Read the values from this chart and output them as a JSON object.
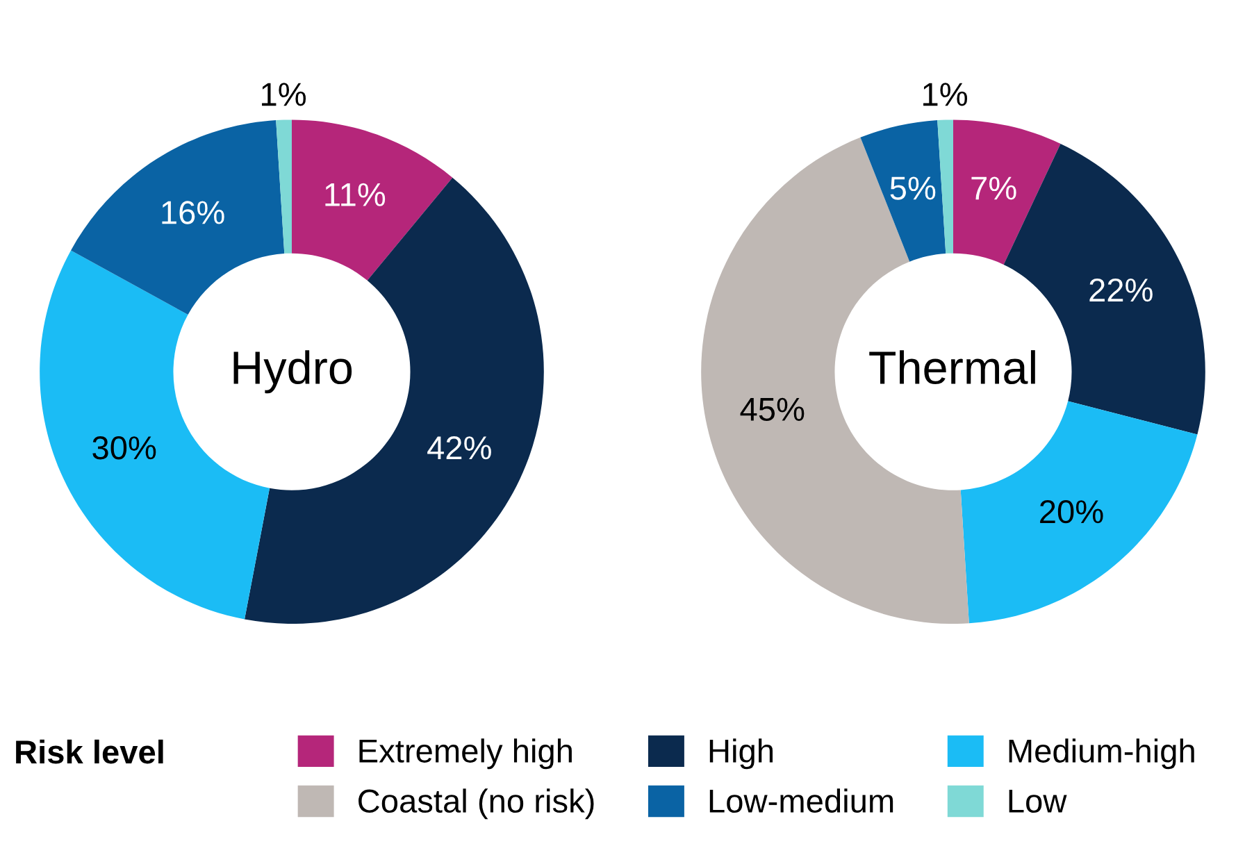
{
  "chart_data": {
    "type": "donut",
    "categories": [
      "Extremely high",
      "High",
      "Medium-high",
      "Coastal (no risk)",
      "Low-medium",
      "Low"
    ],
    "colors": [
      "#b5267a",
      "#0b2a4e",
      "#1bbcf5",
      "#bfb8b4",
      "#0a63a4",
      "#7fd9d6"
    ],
    "series": [
      {
        "name": "Hydro",
        "values": [
          11,
          42,
          30,
          null,
          16,
          1
        ],
        "value_labels": [
          "11%",
          "42%",
          "30%",
          null,
          "16%",
          "1%"
        ]
      },
      {
        "name": "Thermal",
        "values": [
          7,
          22,
          20,
          45,
          5,
          1
        ],
        "value_labels": [
          "7%",
          "22%",
          "20%",
          "45%",
          "5%",
          "1%"
        ]
      }
    ],
    "legend": "bottom",
    "legend_title": "Risk level"
  }
}
